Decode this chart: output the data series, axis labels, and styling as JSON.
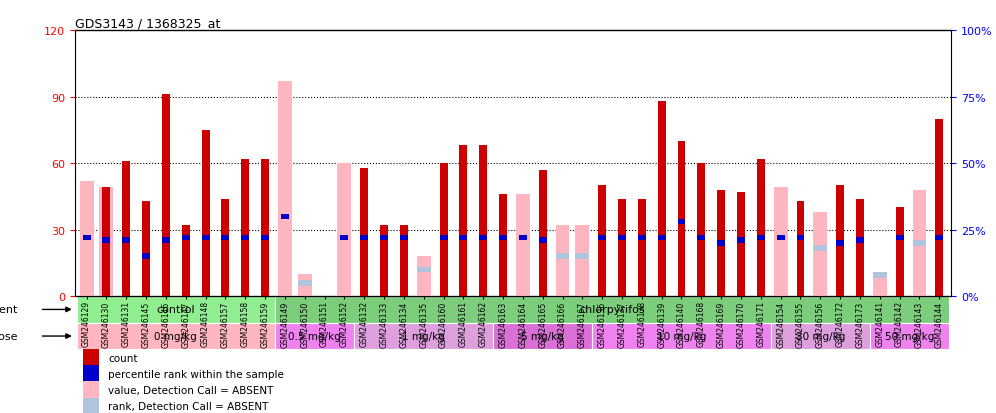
{
  "title": "GDS3143 / 1368325_at",
  "samples": [
    "GSM246129",
    "GSM246130",
    "GSM246131",
    "GSM246145",
    "GSM246146",
    "GSM246147",
    "GSM246148",
    "GSM246157",
    "GSM246158",
    "GSM246159",
    "GSM246149",
    "GSM246150",
    "GSM246151",
    "GSM246152",
    "GSM246132",
    "GSM246133",
    "GSM246134",
    "GSM246135",
    "GSM246160",
    "GSM246161",
    "GSM246162",
    "GSM246163",
    "GSM246164",
    "GSM246165",
    "GSM246166",
    "GSM246167",
    "GSM246136",
    "GSM246137",
    "GSM246138",
    "GSM246139",
    "GSM246140",
    "GSM246168",
    "GSM246169",
    "GSM246170",
    "GSM246171",
    "GSM246154",
    "GSM246155",
    "GSM246156",
    "GSM246172",
    "GSM246173",
    "GSM246141",
    "GSM246142",
    "GSM246143",
    "GSM246144"
  ],
  "count_values": [
    null,
    49,
    61,
    43,
    91,
    32,
    75,
    44,
    62,
    62,
    null,
    null,
    null,
    null,
    58,
    32,
    32,
    null,
    60,
    68,
    68,
    46,
    null,
    57,
    null,
    null,
    50,
    44,
    44,
    88,
    70,
    60,
    48,
    47,
    62,
    null,
    43,
    null,
    50,
    44,
    null,
    40,
    null,
    80
  ],
  "absent_value_values": [
    52,
    49,
    null,
    null,
    null,
    null,
    null,
    null,
    null,
    null,
    97,
    10,
    null,
    60,
    null,
    null,
    null,
    18,
    null,
    null,
    null,
    null,
    46,
    null,
    32,
    32,
    null,
    null,
    null,
    null,
    null,
    null,
    null,
    null,
    null,
    49,
    null,
    38,
    null,
    null,
    10,
    null,
    48,
    null
  ],
  "rank_values": [
    22,
    21,
    21,
    15,
    21,
    22,
    22,
    22,
    22,
    22,
    30,
    null,
    null,
    22,
    22,
    22,
    22,
    null,
    22,
    22,
    22,
    22,
    22,
    21,
    null,
    null,
    22,
    22,
    22,
    22,
    28,
    22,
    20,
    21,
    22,
    22,
    22,
    null,
    20,
    21,
    null,
    22,
    null,
    22
  ],
  "absent_rank_values": [
    null,
    null,
    null,
    null,
    null,
    null,
    null,
    null,
    null,
    null,
    null,
    5,
    null,
    null,
    null,
    null,
    null,
    10,
    null,
    null,
    null,
    null,
    null,
    null,
    15,
    15,
    null,
    null,
    null,
    null,
    null,
    null,
    null,
    null,
    null,
    null,
    null,
    18,
    null,
    null,
    8,
    null,
    20,
    null
  ],
  "agent_groups": [
    {
      "label": "control",
      "start": 0,
      "end": 10,
      "color": "#90EE90"
    },
    {
      "label": "chlorpyrifos",
      "start": 10,
      "end": 44,
      "color": "#7CCD7C"
    }
  ],
  "dose_groups": [
    {
      "label": "0 mg/kg",
      "start": 0,
      "end": 10,
      "color": "#FFB6C1"
    },
    {
      "label": "0.5 mg/kg",
      "start": 10,
      "end": 14,
      "color": "#EE82EE"
    },
    {
      "label": "1 mg/kg",
      "start": 14,
      "end": 21,
      "color": "#DDA0DD"
    },
    {
      "label": "5 mg/kg",
      "start": 21,
      "end": 26,
      "color": "#DA70D6"
    },
    {
      "label": "10 mg/kg",
      "start": 26,
      "end": 35,
      "color": "#EE82EE"
    },
    {
      "label": "30 mg/kg",
      "start": 35,
      "end": 40,
      "color": "#DDA0DD"
    },
    {
      "label": "50 mg/kg",
      "start": 40,
      "end": 44,
      "color": "#EE82EE"
    }
  ],
  "ylim_left": [
    0,
    120
  ],
  "ylim_right": [
    0,
    100
  ],
  "yticks_left": [
    0,
    30,
    60,
    90,
    120
  ],
  "yticks_right": [
    0,
    25,
    50,
    75,
    100
  ],
  "bar_color": "#CC0000",
  "absent_bar_color": "#FFB6C1",
  "rank_color": "#0000CC",
  "absent_rank_color": "#B0C4DE"
}
